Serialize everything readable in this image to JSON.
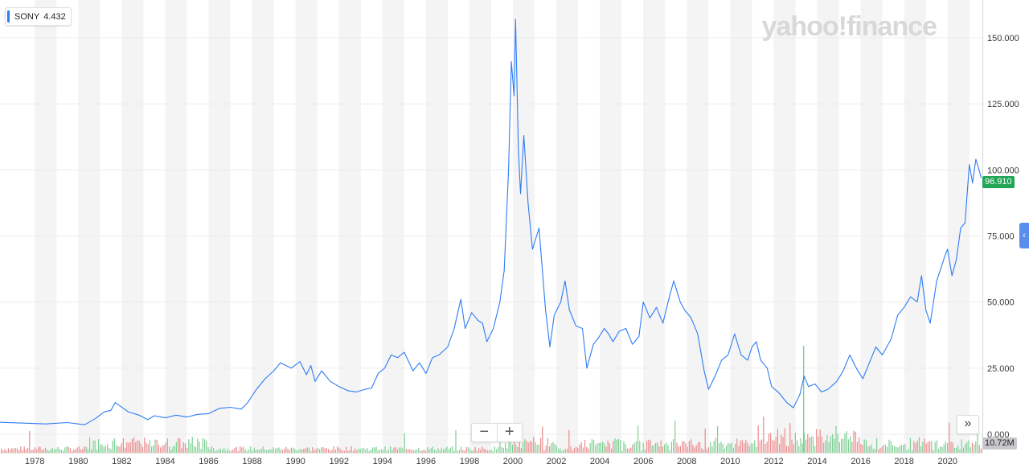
{
  "legend": {
    "symbol": "SONY",
    "value": "4.432",
    "color": "#2e7cf6"
  },
  "watermark": "yahoo!finance",
  "last_price": "96.910",
  "last_volume": "10.72M",
  "controls": {
    "zoom_out": "−",
    "zoom_in": "+",
    "fast_forward": "»",
    "side_tab": "‹"
  },
  "colors": {
    "line": "#2e7cf6",
    "vol_up": "#7fcf93",
    "vol_down": "#e98c8c",
    "band": "#f4f4f4",
    "price_tag": "#21a656"
  },
  "chart_data": {
    "type": "line",
    "title": "",
    "xlabel": "",
    "ylabel": "",
    "x_ticks": [
      "1978",
      "1980",
      "1982",
      "1984",
      "1986",
      "1988",
      "1990",
      "1992",
      "1994",
      "1996",
      "1998",
      "2000",
      "2002",
      "2004",
      "2006",
      "2008",
      "2010",
      "2012",
      "2014",
      "2016",
      "2018",
      "2020"
    ],
    "y_ticks": [
      "0.000",
      "25.000",
      "50.000",
      "75.000",
      "100.000",
      "125.000",
      "150.000"
    ],
    "ylim": [
      0,
      160
    ],
    "xlim": [
      1976.4,
      2021.6
    ],
    "grid": true,
    "series": [
      {
        "name": "SONY",
        "points": [
          [
            1976.4,
            4.5
          ],
          [
            1977.5,
            4.2
          ],
          [
            1978.5,
            3.9
          ],
          [
            1979.5,
            4.4
          ],
          [
            1980.3,
            3.6
          ],
          [
            1980.8,
            6
          ],
          [
            1981.2,
            8.5
          ],
          [
            1981.5,
            9
          ],
          [
            1981.7,
            12
          ],
          [
            1982.3,
            8.5
          ],
          [
            1982.8,
            7.2
          ],
          [
            1983.2,
            5.5
          ],
          [
            1983.5,
            7
          ],
          [
            1984.0,
            6.2
          ],
          [
            1984.5,
            7.2
          ],
          [
            1985.0,
            6.5
          ],
          [
            1985.5,
            7.5
          ],
          [
            1986.0,
            7.8
          ],
          [
            1986.5,
            9.8
          ],
          [
            1987.0,
            10.2
          ],
          [
            1987.5,
            9.5
          ],
          [
            1987.8,
            12
          ],
          [
            1988.2,
            17
          ],
          [
            1988.6,
            21
          ],
          [
            1989.0,
            24
          ],
          [
            1989.3,
            27
          ],
          [
            1989.8,
            25
          ],
          [
            1990.2,
            27.5
          ],
          [
            1990.5,
            22.5
          ],
          [
            1990.7,
            26
          ],
          [
            1990.9,
            20
          ],
          [
            1991.2,
            24
          ],
          [
            1991.6,
            20
          ],
          [
            1992.0,
            18
          ],
          [
            1992.4,
            16.5
          ],
          [
            1992.8,
            16
          ],
          [
            1993.2,
            17
          ],
          [
            1993.5,
            17.5
          ],
          [
            1993.8,
            23
          ],
          [
            1994.1,
            25
          ],
          [
            1994.4,
            30
          ],
          [
            1994.7,
            29
          ],
          [
            1995.0,
            31
          ],
          [
            1995.4,
            24
          ],
          [
            1995.7,
            27
          ],
          [
            1996.0,
            23
          ],
          [
            1996.3,
            29
          ],
          [
            1996.6,
            30
          ],
          [
            1997.0,
            33
          ],
          [
            1997.3,
            40
          ],
          [
            1997.6,
            51
          ],
          [
            1997.8,
            40
          ],
          [
            1998.1,
            46
          ],
          [
            1998.4,
            43
          ],
          [
            1998.6,
            42
          ],
          [
            1998.8,
            35
          ],
          [
            1999.1,
            40
          ],
          [
            1999.4,
            50
          ],
          [
            1999.6,
            62
          ],
          [
            1999.8,
            100
          ],
          [
            1999.93,
            141
          ],
          [
            2000.05,
            128
          ],
          [
            2000.12,
            157
          ],
          [
            2000.25,
            108
          ],
          [
            2000.35,
            91
          ],
          [
            2000.5,
            113
          ],
          [
            2000.7,
            87
          ],
          [
            2000.9,
            70
          ],
          [
            2001.2,
            78
          ],
          [
            2001.5,
            47
          ],
          [
            2001.7,
            33
          ],
          [
            2001.9,
            45
          ],
          [
            2002.2,
            50
          ],
          [
            2002.4,
            58
          ],
          [
            2002.6,
            47
          ],
          [
            2002.9,
            41
          ],
          [
            2003.2,
            40
          ],
          [
            2003.4,
            25
          ],
          [
            2003.7,
            34
          ],
          [
            2003.9,
            36
          ],
          [
            2004.2,
            40
          ],
          [
            2004.4,
            38
          ],
          [
            2004.6,
            35
          ],
          [
            2004.9,
            39
          ],
          [
            2005.2,
            40
          ],
          [
            2005.5,
            34
          ],
          [
            2005.8,
            37
          ],
          [
            2006.0,
            50
          ],
          [
            2006.3,
            44
          ],
          [
            2006.6,
            48
          ],
          [
            2006.9,
            42
          ],
          [
            2007.2,
            52
          ],
          [
            2007.4,
            58
          ],
          [
            2007.7,
            50
          ],
          [
            2007.9,
            47
          ],
          [
            2008.2,
            44
          ],
          [
            2008.5,
            38
          ],
          [
            2008.8,
            24
          ],
          [
            2009.0,
            17
          ],
          [
            2009.3,
            22
          ],
          [
            2009.6,
            28
          ],
          [
            2009.9,
            30
          ],
          [
            2010.2,
            38
          ],
          [
            2010.5,
            30
          ],
          [
            2010.8,
            28
          ],
          [
            2011.0,
            33
          ],
          [
            2011.2,
            35
          ],
          [
            2011.4,
            28
          ],
          [
            2011.7,
            25
          ],
          [
            2011.9,
            18
          ],
          [
            2012.2,
            16
          ],
          [
            2012.6,
            12
          ],
          [
            2012.9,
            10
          ],
          [
            2013.2,
            15
          ],
          [
            2013.4,
            22
          ],
          [
            2013.6,
            18
          ],
          [
            2013.9,
            19
          ],
          [
            2014.2,
            16
          ],
          [
            2014.5,
            17
          ],
          [
            2014.9,
            20
          ],
          [
            2015.2,
            24
          ],
          [
            2015.5,
            30
          ],
          [
            2015.8,
            25
          ],
          [
            2016.1,
            21
          ],
          [
            2016.4,
            27
          ],
          [
            2016.7,
            33
          ],
          [
            2017.0,
            30
          ],
          [
            2017.4,
            36
          ],
          [
            2017.7,
            45
          ],
          [
            2018.0,
            48
          ],
          [
            2018.3,
            52
          ],
          [
            2018.6,
            50
          ],
          [
            2018.8,
            60
          ],
          [
            2019.0,
            47
          ],
          [
            2019.2,
            42
          ],
          [
            2019.5,
            58
          ],
          [
            2019.9,
            68
          ],
          [
            2020.0,
            70
          ],
          [
            2020.2,
            60
          ],
          [
            2020.4,
            66
          ],
          [
            2020.6,
            78
          ],
          [
            2020.8,
            80
          ],
          [
            2021.0,
            102
          ],
          [
            2021.15,
            95
          ],
          [
            2021.3,
            104
          ],
          [
            2021.45,
            100
          ],
          [
            2021.55,
            96.91
          ]
        ]
      }
    ]
  }
}
